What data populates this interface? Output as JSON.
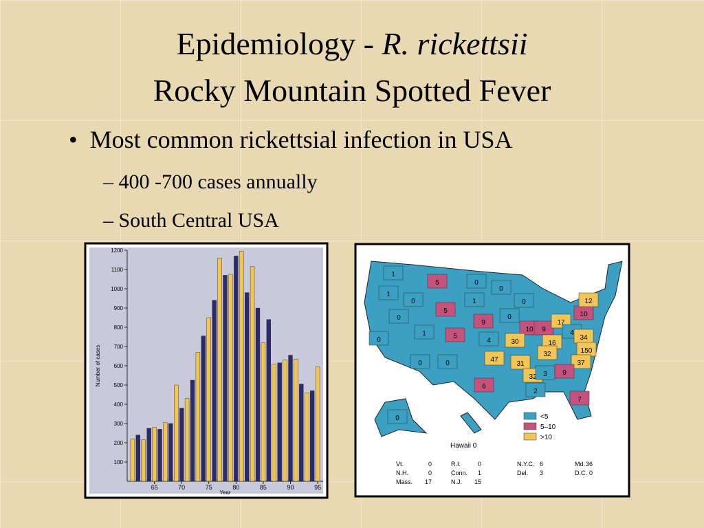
{
  "title": {
    "prefix": "Epidemiology - ",
    "italic": "R. rickettsii",
    "line2": "Rocky Mountain Spotted Fever"
  },
  "bullets": [
    {
      "text": "Most common rickettsial infection in USA",
      "sub": [
        "400 -700 cases annually",
        "South Central USA"
      ]
    }
  ],
  "chart_data": {
    "type": "bar",
    "x_label": "Year",
    "y_label": "Number of cases",
    "x": [
      1961,
      1962,
      1963,
      1964,
      1965,
      1966,
      1967,
      1968,
      1969,
      1970,
      1971,
      1972,
      1973,
      1974,
      1975,
      1976,
      1977,
      1978,
      1979,
      1980,
      1981,
      1982,
      1983,
      1984,
      1985,
      1986,
      1987,
      1988,
      1989,
      1990,
      1991,
      1992,
      1993,
      1994,
      1995
    ],
    "values": [
      220,
      240,
      215,
      275,
      280,
      270,
      305,
      300,
      500,
      380,
      430,
      525,
      670,
      755,
      850,
      940,
      1160,
      1070,
      1075,
      1170,
      1195,
      980,
      1115,
      900,
      720,
      840,
      610,
      615,
      630,
      655,
      635,
      505,
      460,
      470,
      595
    ],
    "colors": [
      "#f2c553",
      "#2b2a6b"
    ],
    "xlim": [
      1960,
      1996
    ],
    "xticks": [
      {
        "value": 1965,
        "label": "65"
      },
      {
        "value": 1970,
        "label": "70"
      },
      {
        "value": 1975,
        "label": "75"
      },
      {
        "value": 1980,
        "label": "80"
      },
      {
        "value": 1985,
        "label": "85"
      },
      {
        "value": 1990,
        "label": "90"
      },
      {
        "value": 1995,
        "label": "95"
      }
    ],
    "ylim": [
      0,
      1200
    ],
    "yticks": [
      100,
      200,
      300,
      400,
      500,
      600,
      700,
      800,
      900,
      1000,
      1100,
      1200
    ]
  },
  "map": {
    "legend": [
      {
        "label": "<5",
        "color": "#3ba0c2"
      },
      {
        "label": "5–10",
        "color": "#c4527c"
      },
      {
        "label": ">10",
        "color": "#f1c556"
      }
    ],
    "states": [
      {
        "label": "1",
        "legend": 0
      },
      {
        "label": "1",
        "legend": 0
      },
      {
        "label": "0",
        "legend": 0
      },
      {
        "label": "5",
        "legend": 1
      },
      {
        "label": "0",
        "legend": 0
      },
      {
        "label": "0",
        "legend": 0
      },
      {
        "label": "1",
        "legend": 0
      },
      {
        "label": "0",
        "legend": 0
      },
      {
        "label": "0",
        "legend": 0
      },
      {
        "label": "0",
        "legend": 0
      },
      {
        "label": "1",
        "legend": 0
      },
      {
        "label": "5",
        "legend": 1
      },
      {
        "label": "5",
        "legend": 1
      },
      {
        "label": "0",
        "legend": 0
      },
      {
        "label": "0",
        "legend": 0
      },
      {
        "label": "9",
        "legend": 1
      },
      {
        "label": "4",
        "legend": 0
      },
      {
        "label": "0",
        "legend": 0
      },
      {
        "label": "10",
        "legend": 1
      },
      {
        "label": "9",
        "legend": 1
      },
      {
        "label": "17",
        "legend": 2
      },
      {
        "label": "10",
        "legend": 1
      },
      {
        "label": "12",
        "legend": 2
      },
      {
        "label": "30",
        "legend": 2
      },
      {
        "label": "16",
        "legend": 2
      },
      {
        "label": "4",
        "legend": 0
      },
      {
        "label": "34",
        "legend": 2
      },
      {
        "label": "150",
        "legend": 2
      },
      {
        "label": "32",
        "legend": 2
      },
      {
        "label": "47",
        "legend": 2
      },
      {
        "label": "31",
        "legend": 2
      },
      {
        "label": "37",
        "legend": 2
      },
      {
        "label": "32",
        "legend": 2
      },
      {
        "label": "3",
        "legend": 0
      },
      {
        "label": "9",
        "legend": 1
      },
      {
        "label": "2",
        "legend": 0
      },
      {
        "label": "6",
        "legend": 1
      },
      {
        "label": "7",
        "legend": 1
      },
      {
        "label": "0",
        "legend": 0
      }
    ],
    "hawaii": "Hawaii 0",
    "table": [
      [
        "Vt.",
        "0",
        "R.I.",
        "0",
        "N.Y.C.",
        "6",
        "Md.",
        "36"
      ],
      [
        "N.H.",
        "0",
        "Conn.",
        "1",
        "Del.",
        "3",
        "D.C.",
        "0"
      ],
      [
        "Mass.",
        "17",
        "N.J.",
        "15"
      ]
    ]
  }
}
